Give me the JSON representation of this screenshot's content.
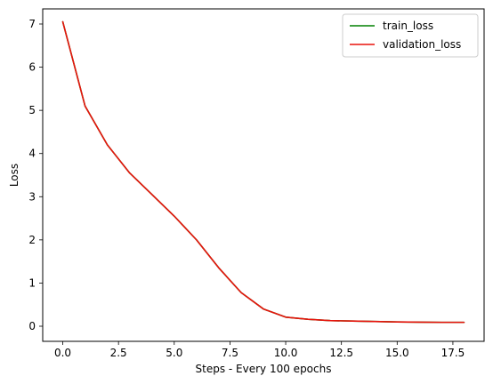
{
  "chart_data": {
    "type": "line",
    "title": "",
    "xlabel": "Steps - Every 100 epochs",
    "ylabel": "Loss",
    "xlim": [
      -0.9,
      18.9
    ],
    "ylim": [
      -0.35,
      7.35
    ],
    "xticks": [
      0.0,
      2.5,
      5.0,
      7.5,
      10.0,
      12.5,
      15.0,
      17.5
    ],
    "xtick_labels": [
      "0.0",
      "2.5",
      "5.0",
      "7.5",
      "10.0",
      "12.5",
      "15.0",
      "17.5"
    ],
    "yticks": [
      0,
      1,
      2,
      3,
      4,
      5,
      6,
      7
    ],
    "ytick_labels": [
      "0",
      "1",
      "2",
      "3",
      "4",
      "5",
      "6",
      "7"
    ],
    "grid": false,
    "legend_position": "top-right",
    "x": [
      0,
      1,
      2,
      3,
      4,
      5,
      6,
      7,
      8,
      9,
      10,
      11,
      12,
      13,
      14,
      15,
      16,
      17,
      18
    ],
    "series": [
      {
        "name": "train_loss",
        "color": "#008000",
        "values": [
          7.05,
          5.1,
          4.2,
          3.55,
          3.05,
          2.55,
          2.0,
          1.35,
          0.78,
          0.4,
          0.21,
          0.16,
          0.13,
          0.12,
          0.11,
          0.1,
          0.095,
          0.09,
          0.09
        ]
      },
      {
        "name": "validation_loss",
        "color": "#e8120c",
        "values": [
          7.05,
          5.1,
          4.2,
          3.55,
          3.05,
          2.55,
          2.0,
          1.35,
          0.78,
          0.4,
          0.21,
          0.16,
          0.13,
          0.12,
          0.11,
          0.1,
          0.095,
          0.09,
          0.09
        ]
      }
    ]
  }
}
